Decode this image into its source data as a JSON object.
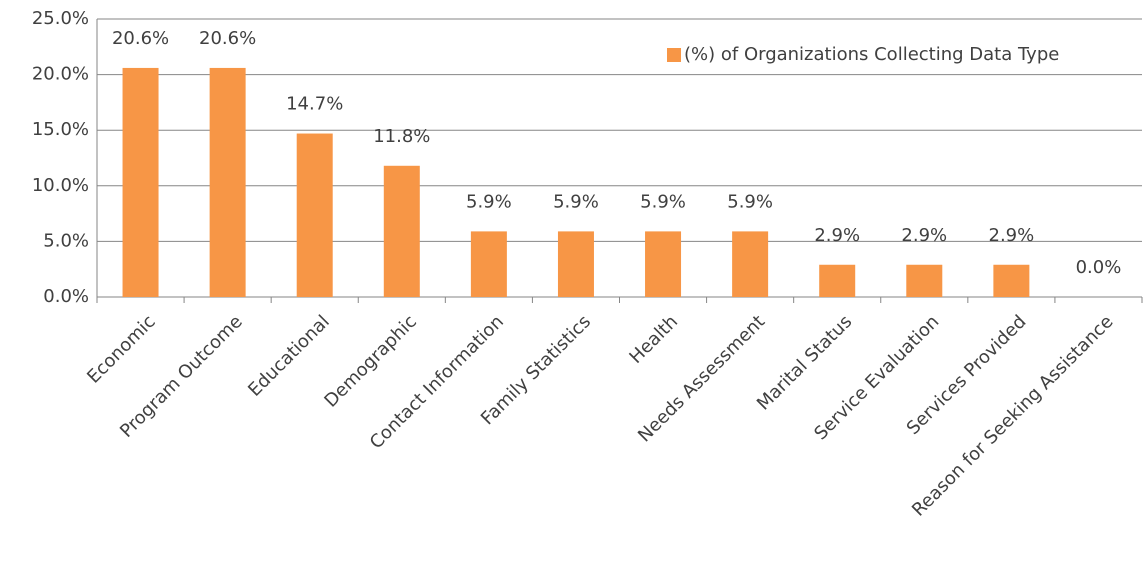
{
  "chart_data": {
    "type": "bar",
    "categories": [
      "Economic",
      "Program Outcome",
      "Educational",
      "Demographic",
      "Contact Information",
      "Family Statistics",
      "Health",
      "Needs Assessment",
      "Marital Status",
      "Service Evaluation",
      "Services Provided",
      "Reason for Seeking Assistance"
    ],
    "series": [
      {
        "name": "(%) of Organizations Collecting Data Type",
        "color": "#f79646",
        "values": [
          20.6,
          20.6,
          14.7,
          11.8,
          5.9,
          5.9,
          5.9,
          5.9,
          2.9,
          2.9,
          2.9,
          0.0
        ],
        "value_labels": [
          "20.6%",
          "20.6%",
          "14.7%",
          "11.8%",
          "5.9%",
          "5.9%",
          "5.9%",
          "5.9%",
          "2.9%",
          "2.9%",
          "2.9%",
          "0.0%"
        ]
      }
    ],
    "ylim": [
      0,
      25
    ],
    "yticks": [
      {
        "value": 0,
        "label": "0.0%"
      },
      {
        "value": 5,
        "label": "5.0%"
      },
      {
        "value": 10,
        "label": "10.0%"
      },
      {
        "value": 15,
        "label": "15.0%"
      },
      {
        "value": 20,
        "label": "20.0%"
      },
      {
        "value": 25,
        "label": "25.0%"
      }
    ],
    "grid": true,
    "legend": "upper right"
  }
}
